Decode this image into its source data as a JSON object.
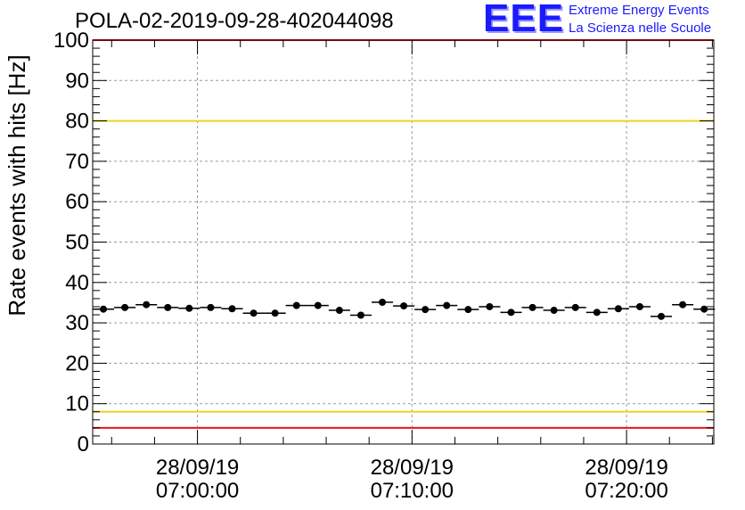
{
  "header": {
    "run_title": "POLA-02-2019-09-28-402044098",
    "logo_text": "EEE",
    "logo_line1": "Extreme Energy Events",
    "logo_line2": "La Scienza nelle Scuole"
  },
  "colors": {
    "red_line": "#e8151b",
    "yellow_line": "#f0d21e",
    "markers": "#000000",
    "grid": "#9a9a9a",
    "logo": "#1a1aff"
  },
  "chart_data": {
    "type": "scatter",
    "title": "POLA-02-2019-09-28-402044098",
    "ylabel": "Rate events with hits [Hz]",
    "xlabel": "",
    "ylim": [
      0,
      100
    ],
    "xlim": [
      "06:55:07",
      "07:24:04"
    ],
    "yticks": [
      "0",
      "10",
      "20",
      "30",
      "40",
      "50",
      "60",
      "70",
      "80",
      "90",
      "100"
    ],
    "xticks": [
      {
        "x": "07:00:00",
        "date": "28/09/19",
        "time": "07:00:00"
      },
      {
        "x": "07:10:00",
        "date": "28/09/19",
        "time": "07:10:00"
      },
      {
        "x": "07:20:00",
        "date": "28/09/19",
        "time": "07:20:00"
      }
    ],
    "grid": true,
    "x_bin_width_minutes": 1,
    "horizontal_lines": [
      {
        "y": 100,
        "color": "red"
      },
      {
        "y": 80,
        "color": "yellow"
      },
      {
        "y": 8,
        "color": "yellow"
      },
      {
        "y": 4,
        "color": "red"
      }
    ],
    "series": [
      {
        "x": [
          "06:55:37",
          "06:56:37",
          "06:57:37",
          "06:58:37",
          "06:59:37",
          "07:00:37",
          "07:01:37",
          "07:02:37",
          "07:03:37",
          "07:04:37",
          "07:05:37",
          "07:06:37",
          "07:07:37",
          "07:08:37",
          "07:09:37",
          "07:10:37",
          "07:11:37",
          "07:12:37",
          "07:13:37",
          "07:14:37",
          "07:15:37",
          "07:16:37",
          "07:17:37",
          "07:18:37",
          "07:19:37",
          "07:20:37",
          "07:21:37",
          "07:22:37",
          "07:23:37"
        ],
        "values": [
          33.4,
          33.8,
          34.5,
          33.8,
          33.6,
          33.8,
          33.5,
          32.4,
          32.4,
          34.3,
          34.3,
          33.1,
          31.9,
          35.1,
          34.2,
          33.3,
          34.3,
          33.3,
          34.0,
          32.6,
          33.8,
          33.1,
          33.8,
          32.6,
          33.5,
          34.0,
          31.6,
          34.5,
          33.4
        ]
      }
    ]
  }
}
